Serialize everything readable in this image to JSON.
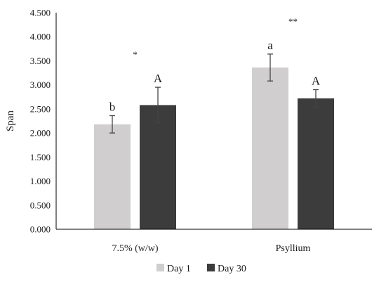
{
  "chart_data": {
    "type": "bar",
    "title": "",
    "xlabel": "",
    "ylabel": "Span",
    "ylim": [
      0,
      4.5
    ],
    "y_ticks": [
      "0.000",
      "0.500",
      "1.000",
      "1.500",
      "2.000",
      "2.500",
      "3.000",
      "3.500",
      "4.000",
      "4.500"
    ],
    "categories": [
      "7.5% (w/w)",
      "Psyllium"
    ],
    "series": [
      {
        "name": "Day 1",
        "color": "#d0cecf",
        "values": [
          2.18,
          3.36
        ],
        "error": [
          0.18,
          0.28
        ],
        "labels": [
          "b",
          "a"
        ]
      },
      {
        "name": "Day 30",
        "color": "#3c3c3c",
        "values": [
          2.58,
          2.72
        ],
        "error": [
          0.37,
          0.18
        ],
        "labels": [
          "A",
          "A"
        ]
      }
    ],
    "group_annotations": [
      "*",
      "**"
    ],
    "grid": false,
    "legend": "bottom"
  }
}
